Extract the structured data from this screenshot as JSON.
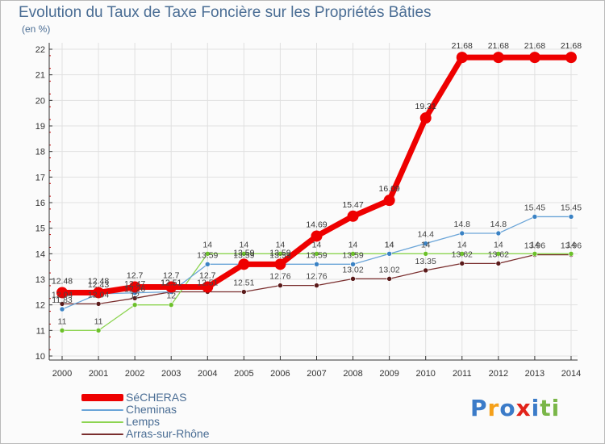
{
  "header": {
    "title": "Evolution du Taux de Taxe Foncière sur les Propriétés Bâties",
    "unit": "(en %)"
  },
  "colors": {
    "title": "#4a6d94",
    "grid": "#e0e0e0",
    "axis": "#333333",
    "tick_marks": "#c00000"
  },
  "logo": {
    "text": "Proxiti",
    "letters": [
      {
        "char": "P",
        "color": "#3b7bc8"
      },
      {
        "char": "r",
        "color": "#f5a01a"
      },
      {
        "char": "o",
        "color": "#3b7bc8"
      },
      {
        "char": "x",
        "color": "#e2231a"
      },
      {
        "char": "i",
        "color": "#3b7bc8"
      },
      {
        "char": "t",
        "color": "#7ab648"
      },
      {
        "char": "i",
        "color": "#7ab648"
      }
    ]
  },
  "chart_data": {
    "type": "line",
    "title": "Evolution du Taux de Taxe Foncière sur les Propriétés Bâties",
    "ylabel": "(en %)",
    "xlabel": "",
    "ylim": [
      10,
      22
    ],
    "yticks": [
      "10",
      "11",
      "12",
      "13",
      "14",
      "15",
      "16",
      "17",
      "18",
      "19",
      "20",
      "21",
      "22"
    ],
    "grid": true,
    "legend_position": "bottom-left",
    "x": [
      "2000",
      "2001",
      "2002",
      "2003",
      "2004",
      "2005",
      "2006",
      "2007",
      "2008",
      "2009",
      "2010",
      "2011",
      "2012",
      "2013",
      "2014"
    ],
    "series": [
      {
        "name": "SéCHERAS",
        "color": "#ee0000",
        "line_width": 7,
        "marker_radius": 7,
        "labels": [
          "12.48",
          "12.48",
          "12.7",
          "12.7",
          "12.7",
          "13.59",
          "13.59",
          "14.69",
          "15.47",
          "16.09",
          "19.31",
          "21.68",
          "21.68",
          "21.68",
          "21.68"
        ],
        "values": [
          12.48,
          12.48,
          12.7,
          12.7,
          12.7,
          13.59,
          13.59,
          14.69,
          15.47,
          16.09,
          19.31,
          21.68,
          21.68,
          21.68,
          21.68
        ]
      },
      {
        "name": "Cheminas",
        "color": "#6ba5d8",
        "marker_color": "#3a82c4",
        "line_width": 1.3,
        "marker_radius": 3,
        "labels": [
          "11.83",
          "12.43",
          "12.47",
          "12.51",
          "13.59",
          "13.59",
          "13.59",
          "13.59",
          "13.59",
          "14",
          "14.4",
          "14.8",
          "14.8",
          "15.45",
          "15.45"
        ],
        "values": [
          11.83,
          12.43,
          12.47,
          12.51,
          13.59,
          13.59,
          13.59,
          13.59,
          13.59,
          14,
          14.4,
          14.8,
          14.8,
          15.45,
          15.45
        ]
      },
      {
        "name": "Lemps",
        "color": "#8cd450",
        "marker_color": "#6cc02a",
        "line_width": 1.3,
        "marker_radius": 3,
        "labels": [
          "11",
          "11",
          "12",
          "12",
          "14",
          "14",
          "14",
          "14",
          "14",
          "14",
          "14",
          "14",
          "14",
          "14",
          "14"
        ],
        "values": [
          11,
          11,
          12,
          12,
          14,
          14,
          14,
          14,
          14,
          14,
          14,
          14,
          14,
          14,
          14
        ]
      },
      {
        "name": "Arras-sur-Rhône",
        "color": "#7a2e2e",
        "marker_color": "#5a1a1a",
        "line_width": 1.3,
        "marker_radius": 3,
        "labels": [
          "12.04",
          "12.04",
          "12.26",
          "12.51",
          "12.51",
          "12.51",
          "12.76",
          "12.76",
          "13.02",
          "13.02",
          "13.35",
          "13.62",
          "13.62",
          "13.96",
          "13.96"
        ],
        "values": [
          12.04,
          12.04,
          12.26,
          12.51,
          12.51,
          12.51,
          12.76,
          12.76,
          13.02,
          13.02,
          13.35,
          13.62,
          13.62,
          13.96,
          13.96
        ]
      }
    ]
  }
}
